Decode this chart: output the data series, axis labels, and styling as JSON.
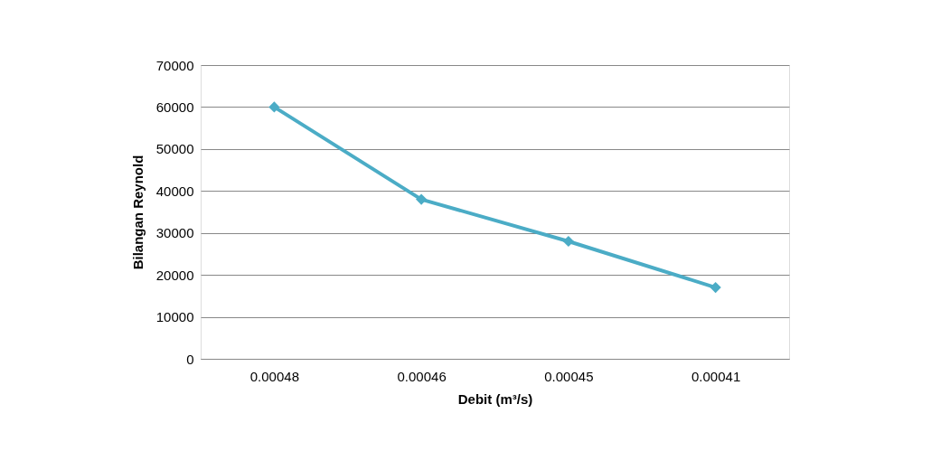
{
  "chart_data": {
    "type": "line",
    "xlabel": "Debit (m³/s)",
    "ylabel": "Bilangan Reynold",
    "categories": [
      "0.00048",
      "0.00046",
      "0.00045",
      "0.00041"
    ],
    "series": [
      {
        "color": "#4bacc6",
        "values": [
          60000,
          38000,
          28000,
          17000
        ]
      }
    ],
    "ylim": [
      0,
      70000
    ],
    "yticks": [
      0,
      10000,
      20000,
      30000,
      40000,
      50000,
      60000,
      70000
    ],
    "grid": "y",
    "marker": "diamond",
    "line_style": "solid"
  }
}
